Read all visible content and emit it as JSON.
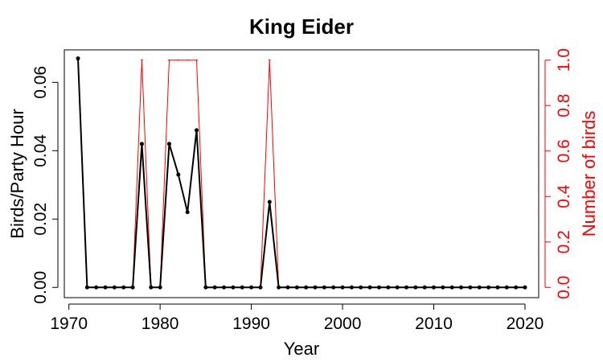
{
  "chart_data": {
    "type": "line",
    "title": "King Eider",
    "xlabel": "Year",
    "ylabel": "Birds/Party Hour",
    "y2label": "Number of birds",
    "xlim": [
      1969.5,
      2021.5
    ],
    "ylim": [
      -0.003,
      0.0695
    ],
    "y2lim": [
      -0.045,
      1.045
    ],
    "x_ticks": [
      1970,
      1980,
      1990,
      2000,
      2010,
      2020
    ],
    "y_ticks": [
      "0.00",
      "0.02",
      "0.04",
      "0.06"
    ],
    "y2_ticks": [
      "0.0",
      "0.2",
      "0.4",
      "0.6",
      "0.8",
      "1.0"
    ],
    "colors": {
      "primary": "#000000",
      "secondary": "#ff0000"
    },
    "x": [
      1971,
      1972,
      1973,
      1974,
      1975,
      1976,
      1977,
      1978,
      1979,
      1980,
      1981,
      1982,
      1983,
      1984,
      1985,
      1986,
      1987,
      1988,
      1989,
      1990,
      1991,
      1992,
      1993,
      1994,
      1995,
      1996,
      1997,
      1998,
      1999,
      2000,
      2001,
      2002,
      2003,
      2004,
      2005,
      2006,
      2007,
      2008,
      2009,
      2010,
      2011,
      2012,
      2013,
      2014,
      2015,
      2016,
      2017,
      2018,
      2019,
      2020
    ],
    "series": [
      {
        "axis": "left",
        "color": "#000000",
        "values": [
          0.067,
          0,
          0,
          0,
          0,
          0,
          0,
          0.042,
          0,
          0,
          0.042,
          0.033,
          0.022,
          0.046,
          0,
          0,
          0,
          0,
          0,
          0,
          0,
          0.025,
          0,
          0,
          0,
          0,
          0,
          0,
          0,
          0,
          0,
          0,
          0,
          0,
          0,
          0,
          0,
          0,
          0,
          0,
          0,
          0,
          0,
          0,
          0,
          0,
          0,
          0,
          0,
          0
        ]
      },
      {
        "axis": "right",
        "color": "#ff0000",
        "values": [
          1,
          0,
          0,
          0,
          0,
          0,
          0,
          1,
          0,
          0,
          1,
          1,
          1,
          1,
          0,
          0,
          0,
          0,
          0,
          0,
          0,
          1,
          0,
          0,
          0,
          0,
          0,
          0,
          0,
          0,
          0,
          0,
          0,
          0,
          0,
          0,
          0,
          0,
          0,
          0,
          0,
          0,
          0,
          0,
          0,
          0,
          0,
          0,
          0,
          0
        ]
      }
    ]
  }
}
